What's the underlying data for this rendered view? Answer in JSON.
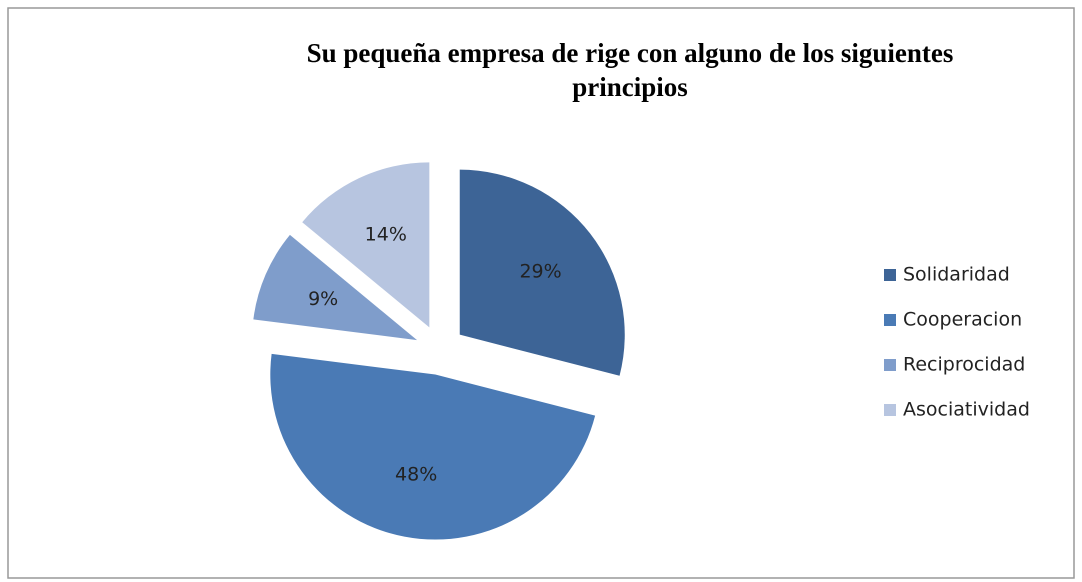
{
  "chart_data": {
    "type": "pie",
    "title": "Su pequeña empresa de rige con alguno de los siguientes principios",
    "categories": [
      "Solidaridad",
      "Cooperacion",
      "Reciprocidad",
      "Asociatividad"
    ],
    "values": [
      29,
      48,
      9,
      14
    ],
    "value_labels": [
      "29%",
      "48%",
      "9%",
      "14%"
    ],
    "colors": [
      "#3d6496",
      "#4a7ab5",
      "#7f9dcb",
      "#b7c5e0"
    ],
    "legend": "right"
  }
}
